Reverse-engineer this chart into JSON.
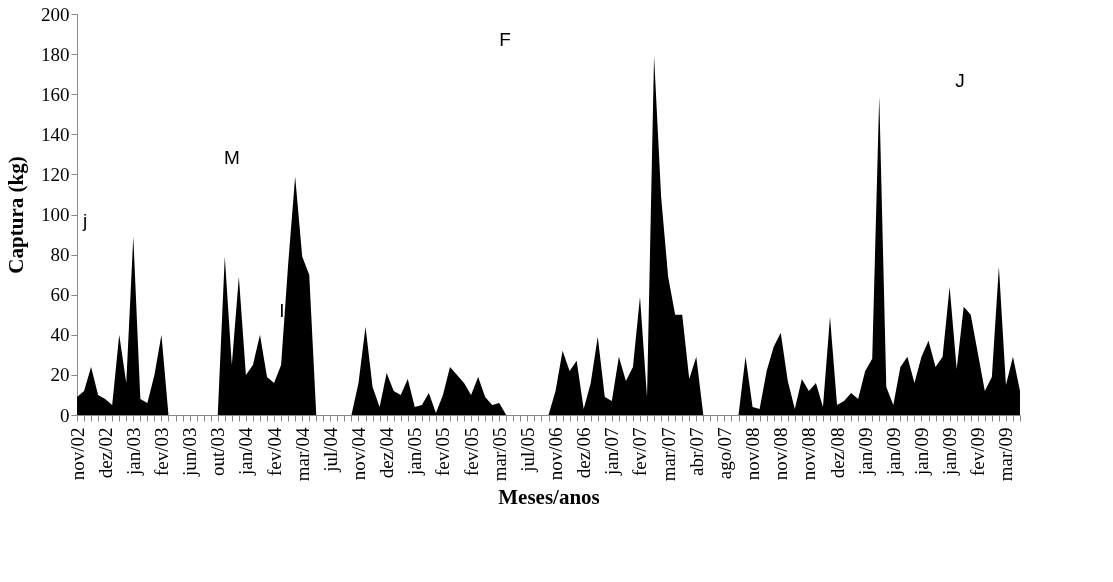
{
  "chart_data": {
    "type": "area",
    "xlabel": "Meses/anos",
    "ylabel": "Captura (kg)",
    "categories": [
      "nov/02",
      null,
      null,
      null,
      "dez/02",
      null,
      null,
      null,
      "jan/03",
      null,
      null,
      null,
      "fev/03",
      null,
      null,
      null,
      "jun/03",
      null,
      null,
      null,
      "out/03",
      null,
      null,
      null,
      "jan/04",
      null,
      null,
      null,
      "fev/04",
      null,
      null,
      null,
      "mar/04",
      null,
      null,
      null,
      "jul/04",
      null,
      null,
      null,
      "nov/04",
      null,
      null,
      null,
      "dez/04",
      null,
      null,
      null,
      "jan/05",
      null,
      null,
      null,
      "fev/05",
      null,
      null,
      null,
      "fev/05",
      null,
      null,
      null,
      "mar/05",
      null,
      null,
      null,
      "jul/05",
      null,
      null,
      null,
      "nov/06",
      null,
      null,
      null,
      "dez/06",
      null,
      null,
      null,
      "jan/07",
      null,
      null,
      null,
      "fev/07",
      null,
      null,
      null,
      "mar/07",
      null,
      null,
      null,
      "abr/07",
      null,
      null,
      null,
      "ago/07",
      null,
      null,
      null,
      "nov/08",
      null,
      null,
      null,
      "nov/08",
      null,
      null,
      null,
      "nov/08",
      null,
      null,
      null,
      "dez/08",
      null,
      null,
      null,
      "jan/09",
      null,
      null,
      null,
      "jan/09",
      null,
      null,
      null,
      "jan/09",
      null,
      null,
      null,
      "jan/09",
      null,
      null,
      null,
      "fev/09",
      null,
      null,
      null,
      "mar/09",
      null,
      null
    ],
    "values": [
      9,
      12,
      24,
      10,
      8,
      5,
      40,
      16,
      89,
      8,
      6,
      20,
      40,
      0,
      0,
      0,
      0,
      0,
      0,
      0,
      0,
      79,
      25,
      69,
      20,
      25,
      40,
      19,
      16,
      25,
      75,
      119,
      79,
      70,
      0,
      0,
      0,
      0,
      0,
      0,
      16,
      44,
      14,
      4,
      21,
      12,
      10,
      18,
      4,
      5,
      11,
      1,
      10,
      24,
      20,
      16,
      10,
      19,
      9,
      5,
      6,
      0,
      0,
      0,
      0,
      0,
      0,
      0,
      12,
      32,
      22,
      27,
      3,
      16,
      39,
      9,
      7,
      29,
      17,
      24,
      59,
      9,
      179,
      109,
      69,
      50,
      50,
      18,
      29,
      0,
      0,
      0,
      0,
      0,
      0,
      29,
      4,
      3,
      22,
      34,
      41,
      17,
      3,
      18,
      12,
      16,
      4,
      49,
      5,
      7,
      11,
      8,
      22,
      28,
      159,
      14,
      5,
      24,
      29,
      16,
      29,
      37,
      24,
      29,
      64,
      23,
      54,
      50,
      31,
      12,
      19,
      74,
      15,
      29,
      12
    ],
    "color": "#000000",
    "ylim": [
      0,
      200
    ],
    "yticks": [
      0,
      20,
      40,
      60,
      80,
      100,
      120,
      140,
      160,
      180,
      200
    ],
    "annotations": [
      "M",
      "j",
      "I",
      "F",
      "J"
    ]
  }
}
